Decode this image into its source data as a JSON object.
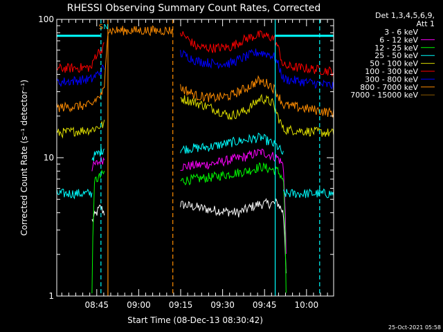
{
  "timestamp": "25-Oct-2021 05:58",
  "chart_data": {
    "type": "line",
    "title": "RHESSI Observing Summary Count Rates, Corrected",
    "xlabel": "Start Time (08-Dec-13 08:30:42)",
    "ylabel": "Corrected Count Rate (s⁻¹ detector⁻¹)",
    "y_scale": "log",
    "ylim": [
      1,
      100
    ],
    "y_ticks": [
      {
        "value": 1,
        "label": "1"
      },
      {
        "value": 10,
        "label": "10"
      },
      {
        "value": 100,
        "label": "100"
      }
    ],
    "xlim_minutes": [
      0,
      99
    ],
    "x_ticks": [
      {
        "value": 14.3,
        "label": "08:45"
      },
      {
        "value": 29.3,
        "label": "09:00"
      },
      {
        "value": 44.3,
        "label": "09:15"
      },
      {
        "value": 59.3,
        "label": "09:30"
      },
      {
        "value": 74.3,
        "label": "09:45"
      },
      {
        "value": 89.3,
        "label": "10:00"
      }
    ],
    "legend": {
      "header_line1": "Det 1,3,4,5,6,9,",
      "header_line2": "Att 1",
      "placement": "right-outside"
    },
    "annotations": [
      {
        "text": "S",
        "x": 15.8,
        "color": "#ff8c00"
      },
      {
        "text": "N",
        "x": 17.6,
        "color": "#00ffff"
      }
    ],
    "vertical_markers": [
      {
        "x": 15.8,
        "style": "dashed",
        "color": "#00ffff"
      },
      {
        "x": 18.3,
        "style": "solid",
        "color": "#ff8c00"
      },
      {
        "x": 41.5,
        "style": "dashed",
        "color": "#ff8c00"
      },
      {
        "x": 78.1,
        "style": "solid",
        "color": "#00ffff"
      },
      {
        "x": 94.0,
        "style": "dashed",
        "color": "#00ffff"
      }
    ],
    "series": [
      {
        "name": "3 - 6 keV",
        "color": "#ffffff",
        "legend_color": "#000000",
        "segments": [
          {
            "x": [
              12.6,
              15.6,
              17.0
            ],
            "y": [
              3.5,
              4.4,
              4.0
            ]
          },
          {
            "x": [
              44.2,
              55,
              65,
              72,
              79,
              81,
              82.0
            ],
            "y": [
              4.6,
              4.2,
              4.0,
              4.6,
              4.7,
              4.0,
              1.5
            ]
          }
        ]
      },
      {
        "name": "6 - 12 keV",
        "color": "#ff00ff",
        "segments": [
          {
            "x": [
              12.6,
              15.6,
              17.0
            ],
            "y": [
              8.5,
              9.5,
              9.8
            ]
          },
          {
            "x": [
              44.2,
              55,
              68,
              73,
              79,
              81,
              82.0
            ],
            "y": [
              8.6,
              9.0,
              10.2,
              11.0,
              10.0,
              8.8,
              2.0
            ]
          }
        ]
      },
      {
        "name": "12 - 25 keV",
        "color": "#00ff00",
        "segments": [
          {
            "x": [
              12.6,
              13.6,
              15.6,
              17.0
            ],
            "y": [
              1.0,
              6.8,
              7.3,
              7.8
            ]
          },
          {
            "x": [
              44.2,
              55,
              68,
              73,
              79,
              81,
              82.0
            ],
            "y": [
              6.8,
              7.2,
              8.0,
              8.6,
              8.0,
              7.0,
              1.0
            ]
          }
        ]
      },
      {
        "name": "25 - 50 keV",
        "color": "#00ffff",
        "segments": [
          {
            "x": [
              0,
              12.6
            ],
            "y": [
              5.5,
              5.5
            ]
          },
          {
            "x": [
              12.6,
              15.6,
              17.0
            ],
            "y": [
              10.0,
              11.0,
              11.8
            ]
          },
          {
            "x": [
              44.2,
              55,
              68,
              73,
              79,
              81
            ],
            "y": [
              11.5,
              12.0,
              13.5,
              14.0,
              12.0,
              10.5
            ]
          },
          {
            "x": [
              81,
              99
            ],
            "y": [
              5.5,
              5.5
            ]
          },
          {
            "x": [
              0,
              15.6
            ],
            "y": [
              76,
              76
            ]
          },
          {
            "x": [
              78.2,
              99
            ],
            "y": [
              76,
              76
            ]
          }
        ]
      },
      {
        "name": "50 - 100 keV",
        "color": "#dddd00",
        "segments": [
          {
            "x": [
              0,
              12.6,
              15.6,
              17.0
            ],
            "y": [
              15.0,
              16.0,
              17.0,
              17.5
            ]
          },
          {
            "x": [
              44.2,
              55,
              62,
              68,
              73,
              77,
              79,
              81,
              99
            ],
            "y": [
              27,
              23,
              20,
              22,
              27,
              25,
              20,
              16,
              15
            ]
          }
        ]
      },
      {
        "name": "100 - 300 keV",
        "color": "#ff0000",
        "segments": [
          {
            "x": [
              0,
              12.6,
              13.6,
              15.6,
              17.0
            ],
            "y": [
              44,
              45,
              54,
              60,
              64
            ]
          },
          {
            "x": [
              44.2,
              50,
              56,
              62,
              68,
              72,
              76,
              78,
              81,
              99
            ],
            "y": [
              80,
              63,
              62,
              63,
              73,
              77,
              75,
              72,
              46,
              42
            ]
          }
        ]
      },
      {
        "name": "300 - 800 keV",
        "color": "#0000ff",
        "segments": [
          {
            "x": [
              0,
              12.6,
              15.6,
              17.0
            ],
            "y": [
              35,
              37,
              42,
              45
            ]
          },
          {
            "x": [
              44.2,
              50,
              56,
              62,
              68,
              72,
              76,
              78,
              81,
              99
            ],
            "y": [
              57,
              50,
              48,
              48,
              54,
              58,
              56,
              53,
              37,
              33
            ]
          }
        ]
      },
      {
        "name": "800 - 7000 keV",
        "color": "#ff8c00",
        "segments": [
          {
            "x": [
              0,
              12.6,
              13.6,
              15.6,
              17.0
            ],
            "y": [
              23,
              24,
              26,
              28,
              31
            ]
          },
          {
            "x": [
              17.0,
              18.3,
              41.5
            ],
            "y": [
              31,
              83,
              83
            ]
          },
          {
            "x": [
              44.2,
              50,
              56,
              62,
              68,
              72,
              76,
              78,
              81,
              99
            ],
            "y": [
              32,
              28,
              27,
              28,
              32,
              36,
              34,
              31,
              24,
              21
            ]
          }
        ]
      },
      {
        "name": "7000 - 15000 keV",
        "color": "#8b5a00",
        "segments": []
      }
    ]
  }
}
